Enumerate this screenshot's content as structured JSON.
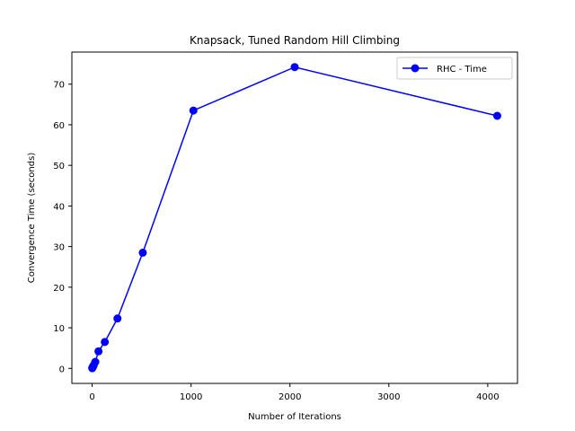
{
  "chart_data": {
    "type": "line",
    "title": "Knapsack, Tuned Random Hill Climbing",
    "xlabel": "Number of Iterations",
    "ylabel": "Convergence Time (seconds)",
    "xlim": [
      -205,
      4301
    ],
    "ylim": [
      -3.7,
      77.9
    ],
    "xticks": [
      0,
      1000,
      2000,
      3000,
      4000
    ],
    "yticks": [
      0,
      10,
      20,
      30,
      40,
      50,
      60,
      70
    ],
    "grid": false,
    "legend_position": "top-right",
    "series": [
      {
        "name": "RHC - Time",
        "color": "#0000ff",
        "marker": "circle",
        "x": [
          1,
          2,
          4,
          8,
          16,
          32,
          64,
          128,
          256,
          512,
          1024,
          2048,
          4096
        ],
        "y": [
          0.05,
          0.1,
          0.2,
          0.4,
          0.8,
          1.6,
          4.2,
          6.5,
          12.3,
          28.5,
          63.5,
          74.2,
          62.2
        ]
      }
    ]
  }
}
